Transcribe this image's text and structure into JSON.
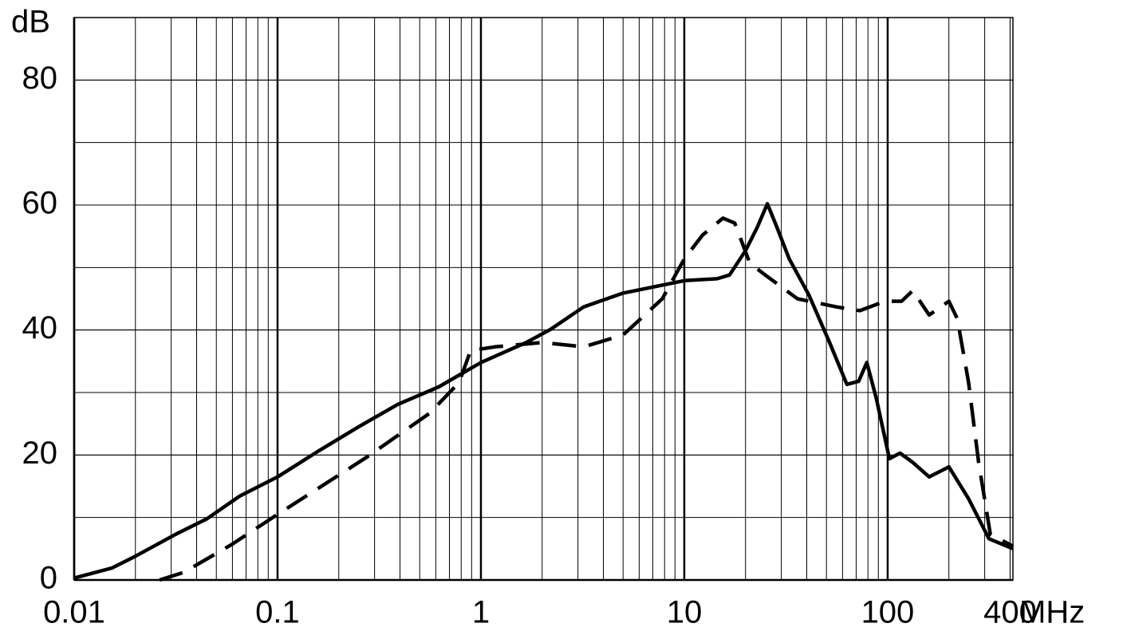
{
  "chart_data": {
    "type": "line",
    "y_label": "dB",
    "x_label": "MHz",
    "xscale": "log",
    "xlim": [
      0.01,
      413
    ],
    "ylim": [
      0,
      90
    ],
    "xticks": [
      0.01,
      0.1,
      1,
      10,
      100,
      400
    ],
    "yticks": [
      0,
      20,
      40,
      60,
      80
    ],
    "grid": true,
    "series": [
      {
        "color": "#000000",
        "style": "solid",
        "x": [
          0.01,
          0.0153,
          0.02,
          0.0315,
          0.045,
          0.065,
          0.1,
          0.16,
          0.25,
          0.39,
          0.62,
          1,
          1.67,
          2.2,
          3.2,
          5,
          10,
          14.5,
          16.7,
          20,
          22.9,
          25.6,
          28.5,
          32.8,
          41,
          51.8,
          63,
          72,
          79,
          88,
          102,
          115,
          133,
          160,
          200,
          250,
          315,
          413
        ],
        "values": [
          0.3,
          1.9,
          3.8,
          7.3,
          9.8,
          13.4,
          16.5,
          20.7,
          24.5,
          28.1,
          30.9,
          34.8,
          38.0,
          40.1,
          43.7,
          45.9,
          47.9,
          48.2,
          48.8,
          52.7,
          56.5,
          60.2,
          56.5,
          51.4,
          45.6,
          38.0,
          31.3,
          31.8,
          34.8,
          29.0,
          19.4,
          20.3,
          18.8,
          16.5,
          18.1,
          13.0,
          6.6,
          5.0
        ]
      },
      {
        "color": "#000000",
        "style": "dashed",
        "x": [
          0.0263,
          0.0345,
          0.059,
          0.1,
          0.276,
          0.56,
          0.78,
          0.89,
          1.17,
          2.0,
          3.2,
          5.0,
          7.8,
          10,
          12.3,
          15.5,
          17.7,
          21,
          25,
          36,
          56,
          73,
          97,
          117,
          133,
          160,
          200,
          220,
          250,
          280,
          320,
          413
        ],
        "values": [
          0,
          1.2,
          5.6,
          10.5,
          19.7,
          26.7,
          31.6,
          36.7,
          37.3,
          38.0,
          37.3,
          39.2,
          45.0,
          51.4,
          55.2,
          57.9,
          57.1,
          50.7,
          48.8,
          45.0,
          43.7,
          43.1,
          44.6,
          44.6,
          46.3,
          42.4,
          44.6,
          41.8,
          31.6,
          18.8,
          7.3,
          5.4
        ]
      }
    ]
  }
}
